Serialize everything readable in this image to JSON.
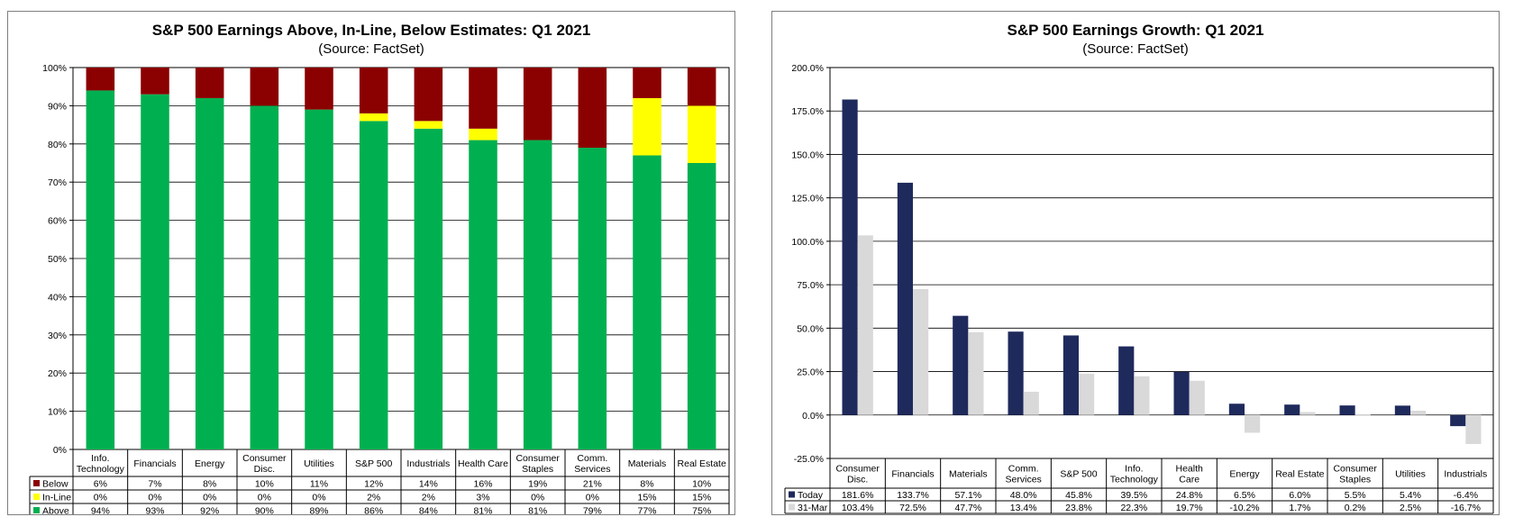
{
  "chart_data": [
    {
      "type": "bar",
      "stacked": true,
      "title": "S&P 500 Earnings Above, In-Line, Below Estimates: Q1 2021",
      "subtitle": "(Source: FactSet)",
      "ylim": [
        0,
        100
      ],
      "y_ticks": [
        "0%",
        "10%",
        "20%",
        "30%",
        "40%",
        "50%",
        "60%",
        "70%",
        "80%",
        "90%",
        "100%"
      ],
      "grid": true,
      "legend": "data-table",
      "categories": [
        "Info. Technology",
        "Financials",
        "Energy",
        "Consumer Disc.",
        "Utilities",
        "S&P 500",
        "Industrials",
        "Health Care",
        "Consumer Staples",
        "Comm. Services",
        "Materials",
        "Real Estate"
      ],
      "category_lines": [
        [
          "Info.",
          "Technology"
        ],
        [
          "Financials"
        ],
        [
          "Energy"
        ],
        [
          "Consumer",
          "Disc."
        ],
        [
          "Utilities"
        ],
        [
          "S&P 500"
        ],
        [
          "Industrials"
        ],
        [
          "Health Care"
        ],
        [
          "Consumer",
          "Staples"
        ],
        [
          "Comm.",
          "Services"
        ],
        [
          "Materials"
        ],
        [
          "Real Estate"
        ]
      ],
      "series": [
        {
          "name": "Below",
          "color": "#8b0000",
          "values": [
            6,
            7,
            8,
            10,
            11,
            12,
            14,
            16,
            19,
            21,
            8,
            10
          ],
          "labels": [
            "6%",
            "7%",
            "8%",
            "10%",
            "11%",
            "12%",
            "14%",
            "16%",
            "19%",
            "21%",
            "8%",
            "10%"
          ]
        },
        {
          "name": "In-Line",
          "color": "#ffff00",
          "values": [
            0,
            0,
            0,
            0,
            0,
            2,
            2,
            3,
            0,
            0,
            15,
            15
          ],
          "labels": [
            "0%",
            "0%",
            "0%",
            "0%",
            "0%",
            "2%",
            "2%",
            "3%",
            "0%",
            "0%",
            "15%",
            "15%"
          ]
        },
        {
          "name": "Above",
          "color": "#00b050",
          "values": [
            94,
            93,
            92,
            90,
            89,
            86,
            84,
            81,
            81,
            79,
            77,
            75
          ],
          "labels": [
            "94%",
            "93%",
            "92%",
            "90%",
            "89%",
            "86%",
            "84%",
            "81%",
            "81%",
            "79%",
            "77%",
            "75%"
          ]
        }
      ]
    },
    {
      "type": "bar",
      "title": "S&P 500 Earnings Growth: Q1 2021",
      "subtitle": "(Source: FactSet)",
      "ylim": [
        -25,
        200
      ],
      "y_ticks": [
        "-25.0%",
        "0.0%",
        "25.0%",
        "50.0%",
        "75.0%",
        "100.0%",
        "125.0%",
        "150.0%",
        "175.0%",
        "200.0%"
      ],
      "grid": true,
      "legend": "data-table",
      "categories": [
        "Consumer Disc.",
        "Financials",
        "Materials",
        "Comm. Services",
        "S&P 500",
        "Info. Technology",
        "Health Care",
        "Energy",
        "Real Estate",
        "Consumer Staples",
        "Utilities",
        "Industrials"
      ],
      "category_lines": [
        [
          "Consumer",
          "Disc."
        ],
        [
          "Financials"
        ],
        [
          "Materials"
        ],
        [
          "Comm.",
          "Services"
        ],
        [
          "S&P 500"
        ],
        [
          "Info.",
          "Technology"
        ],
        [
          "Health",
          "Care"
        ],
        [
          "Energy"
        ],
        [
          "Real Estate"
        ],
        [
          "Consumer",
          "Staples"
        ],
        [
          "Utilities"
        ],
        [
          "Industrials"
        ]
      ],
      "series": [
        {
          "name": "Today",
          "color": "#1f2a5c",
          "values": [
            181.6,
            133.7,
            57.1,
            48.0,
            45.8,
            39.5,
            24.8,
            6.5,
            6.0,
            5.5,
            5.4,
            -6.4
          ],
          "labels": [
            "181.6%",
            "133.7%",
            "57.1%",
            "48.0%",
            "45.8%",
            "39.5%",
            "24.8%",
            "6.5%",
            "6.0%",
            "5.5%",
            "5.4%",
            "-6.4%"
          ]
        },
        {
          "name": "31-Mar",
          "color": "#d9d9d9",
          "values": [
            103.4,
            72.5,
            47.7,
            13.4,
            23.8,
            22.3,
            19.7,
            -10.2,
            1.7,
            0.2,
            2.5,
            -16.7
          ],
          "labels": [
            "103.4%",
            "72.5%",
            "47.7%",
            "13.4%",
            "23.8%",
            "22.3%",
            "19.7%",
            "-10.2%",
            "1.7%",
            "0.2%",
            "2.5%",
            "-16.7%"
          ]
        }
      ]
    }
  ]
}
